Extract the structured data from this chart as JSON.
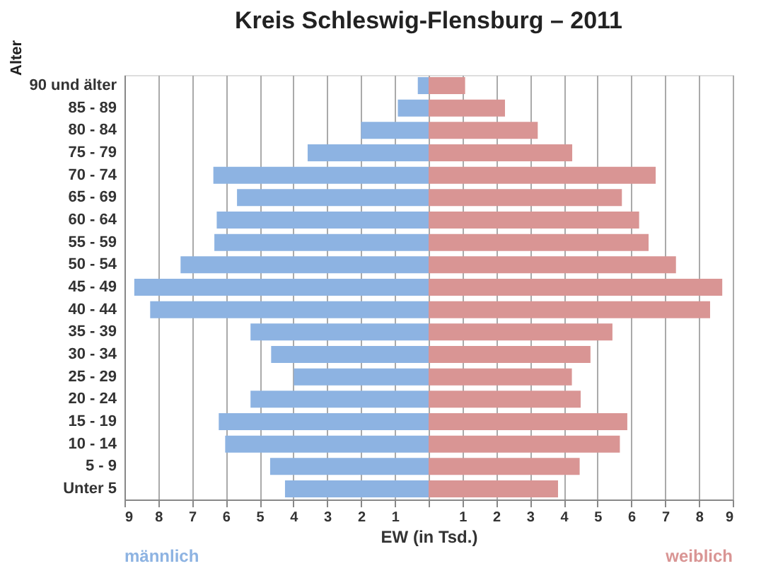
{
  "chart_data": {
    "type": "bar",
    "orientation": "horizontal",
    "title": "Kreis Schleswig-Flensburg – 2011",
    "xlabel": "EW (in Tsd.)",
    "ylabel": "Alter",
    "categories": [
      "90 und älter",
      "85 - 89",
      "80 - 84",
      "75 - 79",
      "70 - 74",
      "65 - 69",
      "60 - 64",
      "55 - 59",
      "50 - 54",
      "45 - 49",
      "40 - 44",
      "35 - 39",
      "30 - 34",
      "25 - 29",
      "20 - 24",
      "15 - 19",
      "10 - 14",
      "5 - 9",
      "Unter 5"
    ],
    "series": [
      {
        "name": "männlich",
        "color": "#8db3e2",
        "values": [
          -0.32,
          -0.91,
          -2.0,
          -3.58,
          -6.37,
          -5.67,
          -6.27,
          -6.34,
          -7.34,
          -8.71,
          -8.24,
          -5.27,
          -4.66,
          -3.99,
          -5.27,
          -6.21,
          -6.02,
          -4.69,
          -4.25
        ]
      },
      {
        "name": "weiblich",
        "color": "#d99594",
        "values": [
          1.08,
          2.26,
          3.23,
          4.25,
          6.72,
          5.72,
          6.23,
          6.51,
          7.32,
          8.69,
          8.33,
          5.44,
          4.79,
          4.24,
          4.5,
          5.88,
          5.66,
          4.47,
          3.83
        ]
      }
    ],
    "xlim": [
      -9,
      9
    ],
    "xticks": [
      {
        "value": -9,
        "label": "9"
      },
      {
        "value": -8,
        "label": "8"
      },
      {
        "value": -7,
        "label": "7"
      },
      {
        "value": -6,
        "label": "6"
      },
      {
        "value": -5,
        "label": "5"
      },
      {
        "value": -4,
        "label": "4"
      },
      {
        "value": -3,
        "label": "3"
      },
      {
        "value": -2,
        "label": "2"
      },
      {
        "value": -1,
        "label": "1"
      },
      {
        "value": 0,
        "label": null
      },
      1,
      2,
      3,
      4,
      5,
      6,
      7,
      8,
      9
    ],
    "grid": "x",
    "stacked": true
  }
}
